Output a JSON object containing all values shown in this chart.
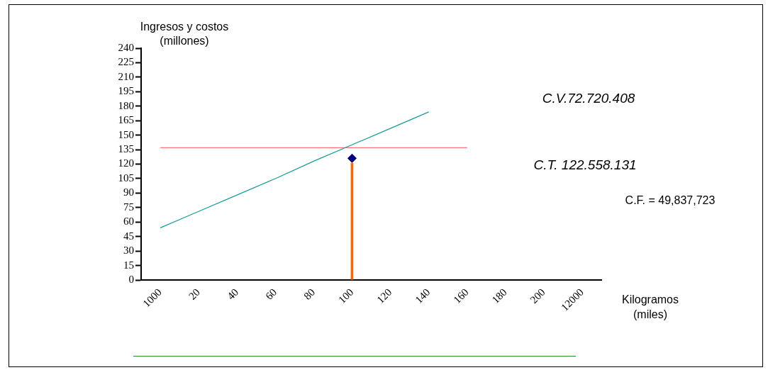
{
  "chart_data": {
    "type": "line",
    "xlabel": "Kilogramos (miles)",
    "ylabel": "Ingresos y costos (millones)",
    "categories": [
      "1000",
      "20",
      "40",
      "60",
      "80",
      "100",
      "120",
      "140",
      "160",
      "180",
      "200",
      "12000"
    ],
    "ylim": [
      0,
      240
    ],
    "yticks": [
      0,
      15,
      30,
      45,
      60,
      75,
      90,
      105,
      120,
      135,
      150,
      165,
      180,
      195,
      210,
      225,
      240
    ],
    "grid": false,
    "legend": false,
    "annotations": [
      "C.V.72.720.408",
      "C.T. 122.558.131",
      "C.F. = 49,837,723"
    ],
    "series": [
      {
        "color": "#189a9a",
        "marker": "none",
        "line_style": "solid",
        "values": [
          54,
          71,
          88,
          105,
          123,
          140,
          157,
          174,
          null,
          null,
          null,
          null
        ]
      },
      {
        "color": "#ff7373",
        "marker": "none",
        "line_style": "solid",
        "values": [
          137,
          137,
          137,
          137,
          137,
          137,
          137,
          137,
          137,
          null,
          null,
          null
        ]
      },
      {
        "type": "bar",
        "color": "#ff6600",
        "values": [
          null,
          null,
          null,
          null,
          null,
          121,
          null,
          null,
          null,
          null,
          null,
          null
        ]
      },
      {
        "type": "scatter",
        "color": "#000080",
        "marker": "diamond",
        "values": [
          null,
          null,
          null,
          null,
          null,
          126,
          null,
          null,
          null,
          null,
          null,
          null
        ]
      }
    ]
  }
}
